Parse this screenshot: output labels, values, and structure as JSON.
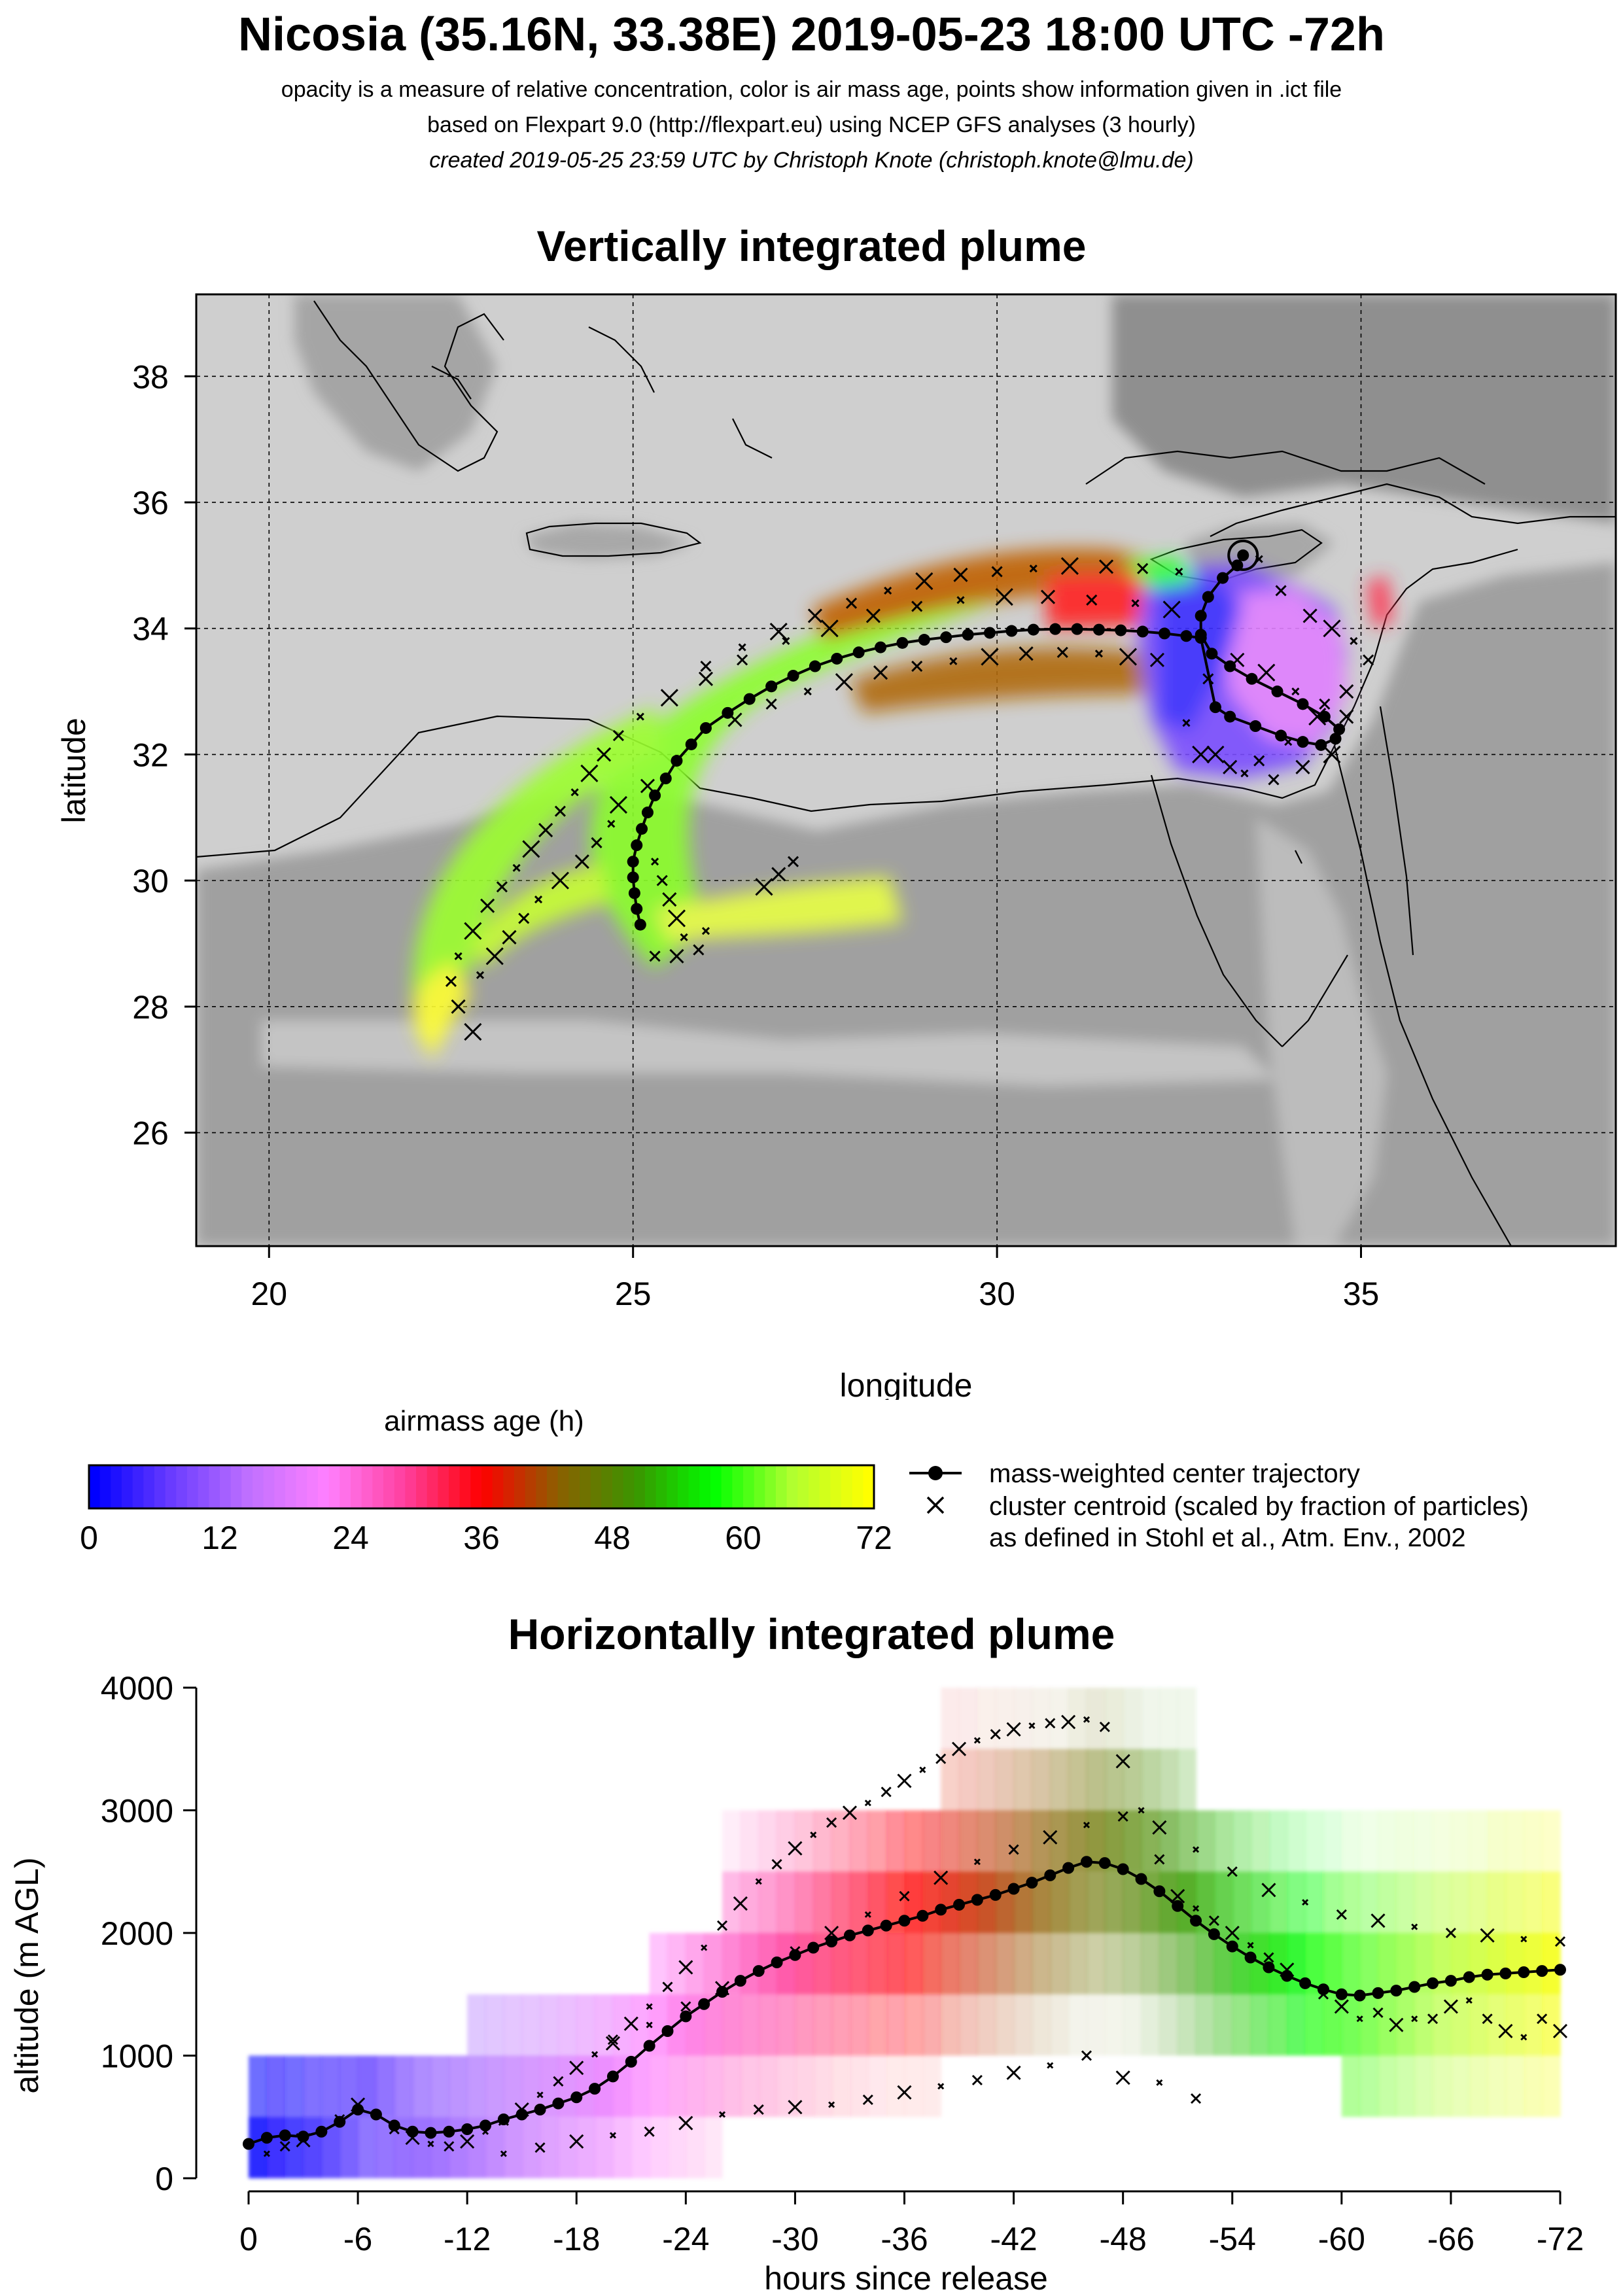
{
  "title": "Nicosia (35.16N, 33.38E) 2019-05-23 18:00 UTC -72h",
  "subtitles": [
    "opacity is a measure of relative concentration, color is air mass age, points show information given in .ict file",
    "based on Flexpart 9.0 (http://flexpart.eu) using NCEP GFS analyses (3 hourly)",
    "created 2019-05-25 23:59 UTC by Christoph Knote (christoph.knote@lmu.de)"
  ],
  "colors": {
    "age_scale": [
      "#0000ff",
      "#6a3cff",
      "#c070ff",
      "#ff80ff",
      "#ff3f9f",
      "#ff0000",
      "#8b6000",
      "#3a9600",
      "#00ff00",
      "#b0ff30",
      "#ffff00"
    ],
    "land_gray": "#9c9c9c",
    "sea_gray": "#d2d2d2",
    "marker": "#000000"
  },
  "colorbar": {
    "label": "airmass age (h)",
    "ticks": [
      "0",
      "12",
      "24",
      "36",
      "48",
      "60",
      "72"
    ],
    "range": [
      0,
      72
    ]
  },
  "legend": {
    "line1": "mass-weighted center trajectory",
    "line2": "cluster centroid (scaled by fraction of particles)",
    "line3": "as defined in Stohl et al., Atm. Env., 2002"
  },
  "chart_data": [
    {
      "type": "scatter",
      "title": "Vertically integrated plume",
      "xlabel": "longitude",
      "ylabel": "latitude",
      "xlim": [
        19,
        38.5
      ],
      "ylim": [
        24.2,
        39.3
      ],
      "xticks": [
        "20",
        "25",
        "30",
        "35"
      ],
      "yticks": [
        "26",
        "28",
        "30",
        "32",
        "34",
        "36",
        "38"
      ],
      "xtick_values": [
        20,
        25,
        30,
        35
      ],
      "ytick_values": [
        26,
        28,
        30,
        32,
        34,
        36,
        38
      ],
      "grid": true,
      "release_site": {
        "lon": 33.38,
        "lat": 35.16
      },
      "series": [
        {
          "name": "mass-weighted center trajectory",
          "lon": [
            33.38,
            33.3,
            33.1,
            32.9,
            32.8,
            32.8,
            32.95,
            33.2,
            33.5,
            33.85,
            34.2,
            34.5,
            34.7,
            34.65,
            34.45,
            34.2,
            33.9,
            33.55,
            33.2,
            33.0,
            32.8,
            32.6,
            32.3,
            32.0,
            31.7,
            31.4,
            31.1,
            30.8,
            30.5,
            30.2,
            29.9,
            29.6,
            29.3,
            29.0,
            28.7,
            28.4,
            28.1,
            27.8,
            27.5,
            27.2,
            26.9,
            26.6,
            26.3,
            26.0,
            25.8,
            25.6,
            25.45,
            25.3,
            25.2,
            25.12,
            25.05,
            25.0,
            25.0,
            25.02,
            25.05,
            25.1
          ],
          "lat": [
            35.16,
            35.0,
            34.8,
            34.5,
            34.2,
            33.9,
            33.6,
            33.4,
            33.2,
            33.0,
            32.8,
            32.6,
            32.4,
            32.25,
            32.15,
            32.2,
            32.3,
            32.45,
            32.6,
            32.75,
            33.85,
            33.88,
            33.92,
            33.95,
            33.97,
            33.98,
            33.99,
            33.99,
            33.98,
            33.96,
            33.93,
            33.9,
            33.86,
            33.82,
            33.77,
            33.7,
            33.62,
            33.52,
            33.4,
            33.25,
            33.08,
            32.88,
            32.66,
            32.42,
            32.16,
            31.9,
            31.62,
            31.35,
            31.08,
            30.82,
            30.56,
            30.3,
            30.05,
            29.8,
            29.55,
            29.3
          ]
        },
        {
          "name": "cluster centroids",
          "lon": [
            33.6,
            33.9,
            34.3,
            34.6,
            34.9,
            35.1,
            34.8,
            34.4,
            34.0,
            33.6,
            33.2,
            32.8,
            32.6,
            32.9,
            33.3,
            33.7,
            34.1,
            34.5,
            34.8,
            33.0,
            33.4,
            33.8,
            34.2,
            34.6,
            32.5,
            32.0,
            31.5,
            31.0,
            30.5,
            30.0,
            29.5,
            29.0,
            28.5,
            28.0,
            27.5,
            27.0,
            26.5,
            26.0,
            32.2,
            31.8,
            31.4,
            30.9,
            30.4,
            29.9,
            29.4,
            28.9,
            28.4,
            27.9,
            27.4,
            26.9,
            26.4,
            32.4,
            31.9,
            31.3,
            30.7,
            30.1,
            29.5,
            28.9,
            28.3,
            27.7,
            27.1,
            26.5,
            26.0,
            25.5,
            25.1,
            24.8,
            24.6,
            24.4,
            24.2,
            24.0,
            23.8,
            23.6,
            23.4,
            23.2,
            23.0,
            22.8,
            22.6,
            22.5,
            22.6,
            22.8,
            25.3,
            25.4,
            25.5,
            25.6,
            25.7,
            25.3,
            25.2,
            24.8,
            24.7,
            24.5,
            24.3,
            24.0,
            23.7,
            23.5,
            23.3,
            23.1,
            22.9,
            27.2,
            27.0,
            26.8,
            26.0,
            25.9,
            25.6
          ],
          "lat": [
            35.1,
            34.6,
            34.2,
            34.0,
            33.8,
            33.5,
            33.0,
            32.6,
            32.2,
            31.9,
            31.8,
            32.0,
            32.5,
            33.2,
            33.5,
            33.3,
            33.0,
            32.8,
            32.6,
            32.0,
            31.7,
            31.6,
            31.8,
            32.0,
            34.9,
            34.95,
            34.98,
            34.99,
            34.95,
            34.9,
            34.85,
            34.75,
            34.6,
            34.4,
            34.2,
            33.95,
            33.7,
            33.4,
            33.5,
            33.55,
            33.6,
            33.62,
            33.6,
            33.55,
            33.48,
            33.4,
            33.3,
            33.15,
            33.0,
            32.8,
            32.55,
            34.3,
            34.4,
            34.45,
            34.5,
            34.5,
            34.45,
            34.35,
            34.2,
            34.0,
            33.8,
            33.5,
            33.2,
            32.9,
            32.6,
            32.3,
            32.0,
            31.7,
            31.4,
            31.1,
            30.8,
            30.5,
            30.2,
            29.9,
            29.6,
            29.2,
            28.8,
            28.4,
            28.0,
            27.6,
            30.3,
            30.0,
            29.7,
            29.4,
            29.1,
            28.8,
            31.5,
            31.2,
            30.9,
            30.6,
            30.3,
            30.0,
            29.7,
            29.4,
            29.1,
            28.8,
            28.5,
            30.3,
            30.1,
            29.9,
            29.2,
            28.9,
            28.8
          ]
        }
      ]
    },
    {
      "type": "line",
      "title": "Horizontally integrated plume",
      "xlabel": "hours since release",
      "ylabel": "altitude (m AGL)",
      "xlim": [
        0,
        -72
      ],
      "ylim": [
        0,
        4000
      ],
      "xticks": [
        "0",
        "-6",
        "-12",
        "-18",
        "-24",
        "-30",
        "-36",
        "-42",
        "-48",
        "-54",
        "-60",
        "-66",
        "-72"
      ],
      "xtick_values": [
        0,
        -6,
        -12,
        -18,
        -24,
        -30,
        -36,
        -42,
        -48,
        -54,
        -60,
        -66,
        -72
      ],
      "yticks": [
        "0",
        "1000",
        "2000",
        "3000",
        "4000"
      ],
      "ytick_values": [
        0,
        1000,
        2000,
        3000,
        4000
      ],
      "plume_bands": [
        {
          "from": 0,
          "to": -6,
          "bottom": 0,
          "top": 1000
        },
        {
          "from": -6,
          "to": -12,
          "bottom": 0,
          "top": 1000
        },
        {
          "from": -12,
          "to": -18,
          "bottom": 0,
          "top": 1500
        },
        {
          "from": -18,
          "to": -22,
          "bottom": 0,
          "top": 1500
        },
        {
          "from": -22,
          "to": -26,
          "bottom": 0,
          "top": 2000
        },
        {
          "from": -26,
          "to": -38,
          "bottom": 500,
          "top": 3000
        },
        {
          "from": -38,
          "to": -52,
          "bottom": 1000,
          "top": 4000
        },
        {
          "from": -52,
          "to": -60,
          "bottom": 1000,
          "top": 3000
        },
        {
          "from": -60,
          "to": -72,
          "bottom": 500,
          "top": 3000
        }
      ],
      "series": [
        {
          "name": "mass-weighted center trajectory",
          "x": [
            0,
            -1,
            -2,
            -3,
            -4,
            -5,
            -6,
            -7,
            -8,
            -9,
            -10,
            -11,
            -12,
            -13,
            -14,
            -15,
            -16,
            -17,
            -18,
            -19,
            -20,
            -21,
            -22,
            -23,
            -24,
            -25,
            -26,
            -27,
            -28,
            -29,
            -30,
            -31,
            -32,
            -33,
            -34,
            -35,
            -36,
            -37,
            -38,
            -39,
            -40,
            -41,
            -42,
            -43,
            -44,
            -45,
            -46,
            -47,
            -48,
            -49,
            -50,
            -51,
            -52,
            -53,
            -54,
            -55,
            -56,
            -57,
            -58,
            -59,
            -60,
            -61,
            -62,
            -63,
            -64,
            -65,
            -66,
            -67,
            -68,
            -69,
            -70,
            -71,
            -72
          ],
          "y": [
            280,
            330,
            350,
            340,
            380,
            460,
            560,
            520,
            430,
            380,
            370,
            380,
            400,
            430,
            480,
            520,
            560,
            610,
            660,
            730,
            830,
            950,
            1080,
            1200,
            1320,
            1420,
            1520,
            1610,
            1690,
            1760,
            1820,
            1880,
            1930,
            1980,
            2020,
            2060,
            2100,
            2140,
            2190,
            2230,
            2270,
            2310,
            2360,
            2410,
            2470,
            2530,
            2580,
            2570,
            2520,
            2440,
            2340,
            2220,
            2100,
            1990,
            1890,
            1800,
            1720,
            1650,
            1590,
            1540,
            1500,
            1490,
            1510,
            1530,
            1560,
            1590,
            1610,
            1640,
            1660,
            1670,
            1680,
            1690,
            1700
          ]
        },
        {
          "name": "cluster centroids",
          "x": [
            -1,
            -2,
            -3,
            -4,
            -5,
            -6,
            -7,
            -8,
            -9,
            -10,
            -11,
            -12,
            -13,
            -14,
            -15,
            -16,
            -17,
            -18,
            -19,
            -20,
            -21,
            -22,
            -23,
            -24,
            -25,
            -26,
            -27,
            -28,
            -29,
            -30,
            -31,
            -32,
            -33,
            -34,
            -35,
            -36,
            -37,
            -38,
            -39,
            -40,
            -41,
            -42,
            -43,
            -44,
            -45,
            -46,
            -47,
            -48,
            -49,
            -50,
            -51,
            -52,
            -53,
            -54,
            -55,
            -56,
            -57,
            -58,
            -59,
            -60,
            -61,
            -62,
            -63,
            -64,
            -65,
            -66,
            -67,
            -68,
            -69,
            -70,
            -71,
            -72,
            -14,
            -16,
            -18,
            -20,
            -22,
            -24,
            -26,
            -28,
            -30,
            -32,
            -34,
            -36,
            -38,
            -40,
            -42,
            -44,
            -46,
            -48,
            -50,
            -52,
            -20,
            -22,
            -24,
            -26,
            -28,
            -30,
            -32,
            -34,
            -36,
            -38,
            -40,
            -42,
            -44,
            -46,
            -48,
            -50,
            -52,
            -54,
            -56,
            -58,
            -60,
            -62,
            -64,
            -66,
            -68,
            -70,
            -72
          ],
          "y": [
            200,
            260,
            310,
            390,
            480,
            600,
            520,
            400,
            330,
            280,
            260,
            300,
            380,
            470,
            560,
            680,
            790,
            900,
            1010,
            1130,
            1260,
            1400,
            1560,
            1720,
            1880,
            2060,
            2240,
            2420,
            2560,
            2690,
            2800,
            2900,
            2980,
            3060,
            3150,
            3240,
            3330,
            3420,
            3500,
            3570,
            3620,
            3660,
            3690,
            3710,
            3720,
            3740,
            3680,
            3400,
            3000,
            2600,
            2300,
            2200,
            2100,
            2000,
            1900,
            1800,
            1700,
            1600,
            1500,
            1400,
            1300,
            1350,
            1250,
            1300,
            1300,
            1400,
            1450,
            1300,
            1200,
            1150,
            1300,
            1200,
            200,
            250,
            300,
            350,
            380,
            450,
            520,
            560,
            580,
            600,
            640,
            700,
            750,
            800,
            860,
            920,
            1000,
            820,
            780,
            650,
            1100,
            1250,
            1400,
            1550,
            1700,
            1850,
            2000,
            2150,
            2300,
            2450,
            2580,
            2680,
            2780,
            2880,
            2950,
            2860,
            2680,
            2500,
            2350,
            2250,
            2150,
            2100,
            2050,
            2000,
            1980,
            1950,
            1930
          ]
        }
      ]
    }
  ]
}
